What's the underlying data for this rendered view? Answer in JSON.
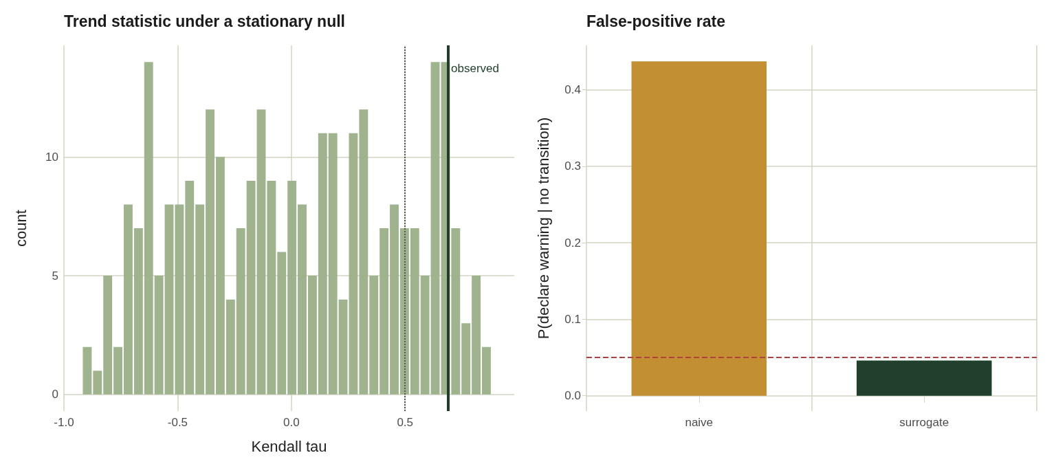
{
  "chart_data": [
    {
      "type": "histogram",
      "title": "Trend statistic under a stationary null",
      "xlabel": "Kendall tau",
      "ylabel": "count",
      "color": "#9aaf88",
      "bins": [
        -0.92,
        -0.875,
        -0.83,
        -0.785,
        -0.74,
        -0.695,
        -0.65,
        -0.605,
        -0.56,
        -0.515,
        -0.47,
        -0.425,
        -0.38,
        -0.335,
        -0.29,
        -0.245,
        -0.2,
        -0.155,
        -0.11,
        -0.065,
        -0.02,
        0.025,
        0.07,
        0.115,
        0.16,
        0.205,
        0.25,
        0.295,
        0.34,
        0.385,
        0.43,
        0.475,
        0.52,
        0.565,
        0.61,
        0.655,
        0.7,
        0.745,
        0.79,
        0.835,
        0.88
      ],
      "values": [
        2,
        1,
        5,
        2,
        8,
        7,
        14,
        5,
        8,
        8,
        9,
        8,
        12,
        10,
        4,
        7,
        9,
        12,
        9,
        6,
        9,
        8,
        5,
        11,
        11,
        4,
        11,
        12,
        5,
        7,
        8,
        7,
        7,
        5,
        14,
        14,
        7,
        3,
        5,
        2
      ],
      "xlim": [
        -1.0,
        0.98
      ],
      "xticks": [
        {
          "value": -1.0,
          "label": "-1.0"
        },
        {
          "value": -0.5,
          "label": "-0.5"
        },
        {
          "value": 0,
          "label": "0.0"
        },
        {
          "value": 0.5,
          "label": "0.5"
        }
      ],
      "ylim": [
        -0.7,
        14.7
      ],
      "yticks": [
        0,
        5,
        10
      ],
      "grid": true,
      "ref_lines": [
        {
          "axis": "x",
          "value": 0.5,
          "color": "#555555",
          "line_style": "dotted"
        },
        {
          "axis": "x",
          "value": 0.69,
          "label": "observed",
          "color": "#1f3d28",
          "line_style": "solid"
        }
      ]
    },
    {
      "type": "bar",
      "title": "False-positive rate",
      "ylabel": "P(declare warning | no transition)",
      "categories": [
        "naive",
        "surrogate"
      ],
      "values": [
        0.437,
        0.046
      ],
      "colors": [
        "#c29032",
        "#20402c"
      ],
      "ylim": [
        -0.02,
        0.458
      ],
      "yticks": [
        {
          "value": 0,
          "label": "0.0"
        },
        {
          "value": 0.1,
          "label": "0.1"
        },
        {
          "value": 0.2,
          "label": "0.2"
        },
        {
          "value": 0.3,
          "label": "0.3"
        },
        {
          "value": 0.4,
          "label": "0.4"
        }
      ],
      "grid": true,
      "ref_lines": [
        {
          "axis": "y",
          "value": 0.05,
          "color": "#b0403f",
          "line_style": "dashed"
        }
      ]
    }
  ]
}
